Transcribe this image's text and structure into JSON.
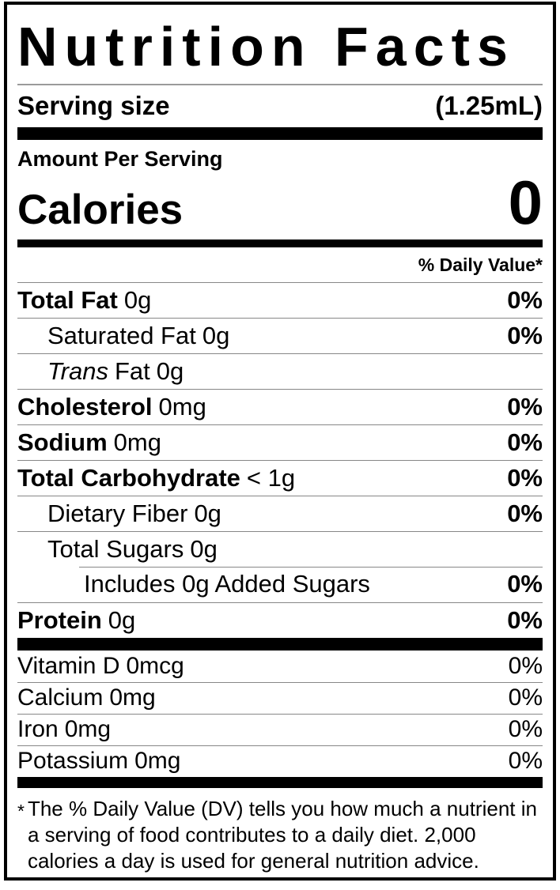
{
  "nutrition_label": {
    "title": "Nutrition Facts",
    "serving_row": {
      "label": "Serving size",
      "value": "(1.25mL)"
    },
    "amount_per_serving": "Amount Per Serving",
    "calories_row": {
      "label": "Calories",
      "value": "0"
    },
    "daily_value_header": "% Daily Value*",
    "nutrient_rows": [
      {
        "name": "Total Fat",
        "amount": "0g",
        "dv": "0%"
      },
      {
        "name": "Saturated Fat",
        "amount": "0g",
        "dv": "0%"
      },
      {
        "name_italic": "Trans",
        "name": "Fat",
        "amount": "0g",
        "dv": ""
      },
      {
        "name": "Cholesterol",
        "amount": "0mg",
        "dv": "0%"
      },
      {
        "name": "Sodium",
        "amount": "0mg",
        "dv": "0%"
      },
      {
        "name": "Total Carbohydrate",
        "amount": "< 1g",
        "dv": "0%"
      },
      {
        "name": "Dietary Fiber",
        "amount": "0g",
        "dv": "0%"
      },
      {
        "name": "Total Sugars",
        "amount": "0g",
        "dv": ""
      },
      {
        "name": "Includes 0g Added Sugars",
        "amount": "",
        "dv": "0%"
      },
      {
        "name": "Protein",
        "amount": "0g",
        "dv": "0%"
      }
    ],
    "vitamin_rows": [
      {
        "name": "Vitamin D",
        "amount": "0mcg",
        "dv": "0%"
      },
      {
        "name": "Calcium",
        "amount": "0mg",
        "dv": "0%"
      },
      {
        "name": "Iron",
        "amount": "0mg",
        "dv": "0%"
      },
      {
        "name": "Potassium",
        "amount": "0mg",
        "dv": "0%"
      }
    ],
    "footnote": {
      "asterisk": "*",
      "text": "The % Daily Value (DV) tells you how much a nutrient in a serving of food contributes to a daily diet. 2,000 calories a day is used for general nutrition advice."
    },
    "colors": {
      "text": "#000000",
      "thick_separator": "#000000",
      "hairline": "#878787"
    }
  }
}
